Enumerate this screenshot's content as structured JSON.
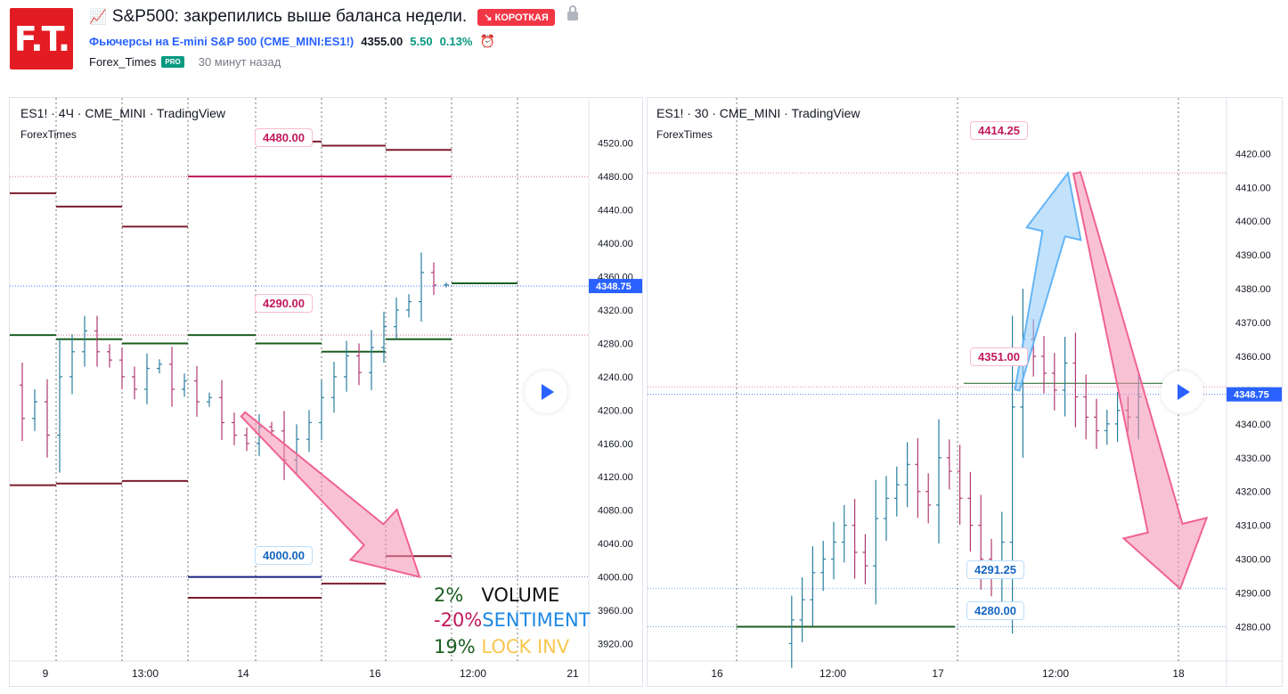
{
  "header": {
    "title": "S&P500: закрепились выше баланса недели.",
    "badge": "↘ КОРОТКАЯ",
    "symbol_name": "Фьючерсы на E-mini S&P 500",
    "symbol_code": "(CME_MINI:ES1!)",
    "price": "4355.00",
    "change": "5.50",
    "change_pct": "0.13%",
    "author": "Forex_Times",
    "pro": "PRO",
    "time_ago": "30 минут назад",
    "logo": "F.T."
  },
  "colors": {
    "accent": "#e31b23",
    "up": "#089981",
    "down": "#880e4f",
    "pink": "#f48fb1",
    "blue": "#90caf9"
  },
  "left_chart": {
    "title": "ES1! · 4Ч · CME_MINI · TradingView",
    "author": "ForexTimes",
    "price_tag": "4348.75",
    "labels": {
      "l4480": "4480.00",
      "l4290": "4290.00",
      "l4000": "4000.00"
    },
    "legend": {
      "v1": "2%",
      "t1": "VOLUME",
      "v2": "-20%",
      "t2": "SENTIMENT",
      "v3": "19%",
      "t3": "LOCK INV"
    }
  },
  "right_chart": {
    "title": "ES1! · 30 · CME_MINI · TradingView",
    "author": "ForexTimes",
    "price_tag": "4348.75",
    "labels": {
      "l4414": "4414.25",
      "l4351": "4351.00",
      "l4291": "4291.25",
      "l4280": "4280.00"
    }
  },
  "chart_data": [
    {
      "type": "line",
      "title": "ES1! · 4Ч · CME_MINI · TradingView",
      "x_ticks": [
        "9",
        "13:00",
        "14",
        "16",
        "12:00",
        "21"
      ],
      "y_ticks": [
        "4520.00",
        "4480.00",
        "4440.00",
        "4400.00",
        "4360.00",
        "4320.00",
        "4280.00",
        "4240.00",
        "4200.00",
        "4160.00",
        "4120.00",
        "4080.00",
        "4040.00",
        "4000.00",
        "3960.00",
        "3920.00"
      ],
      "ylim": [
        3912,
        4540
      ],
      "levels": [
        {
          "value": 4480,
          "label": "4480.00",
          "color": "#c2185b"
        },
        {
          "value": 4290,
          "label": "4290.00",
          "color": "#c2185b"
        },
        {
          "value": 4000,
          "label": "4000.00",
          "color": "#1a237e"
        }
      ],
      "current_price": 4348.75,
      "price_path": [
        4230,
        4190,
        4210,
        4170,
        4240,
        4270,
        4295,
        4270,
        4260,
        4240,
        4225,
        4250,
        4255,
        4225,
        4235,
        4210,
        4215,
        4185,
        4170,
        4160,
        4180,
        4175,
        4140,
        4165,
        4185,
        4215,
        4240,
        4265,
        4245,
        4275,
        4300,
        4320,
        4330,
        4365,
        4350,
        4350
      ],
      "forecast_arrow": {
        "from": 4195,
        "to": 4000
      }
    },
    {
      "type": "line",
      "title": "ES1! · 30 · CME_MINI · TradingView",
      "x_ticks": [
        "16",
        "12:00",
        "17",
        "12:00",
        "18"
      ],
      "y_ticks": [
        "4420.00",
        "4410.00",
        "4400.00",
        "4390.00",
        "4380.00",
        "4370.00",
        "4360.00",
        "4350.00",
        "4340.00",
        "4330.00",
        "4320.00",
        "4310.00",
        "4300.00",
        "4290.00",
        "4280.00"
      ],
      "ylim": [
        4273,
        4428
      ],
      "levels": [
        {
          "value": 4414.25,
          "label": "4414.25",
          "color": "#c2185b"
        },
        {
          "value": 4351,
          "label": "4351.00",
          "color": "#c2185b"
        },
        {
          "value": 4291.25,
          "label": "4291.25",
          "color": "#1565c0"
        },
        {
          "value": 4280,
          "label": "4280.00",
          "color": "#1565c0"
        }
      ],
      "current_price": 4348.75,
      "price_path": [
        4275,
        4282,
        4288,
        4296,
        4300,
        4305,
        4310,
        4302,
        4298,
        4312,
        4318,
        4322,
        4328,
        4320,
        4316,
        4330,
        4326,
        4318,
        4310,
        4300,
        4295,
        4305,
        4345,
        4365,
        4360,
        4355,
        4350,
        4358,
        4348,
        4342,
        4338,
        4340,
        4344,
        4342,
        4348
      ],
      "forecast_arrows": [
        {
          "from": 4350,
          "to": 4414.25
        },
        {
          "from": 4414.25,
          "to": 4291.25
        }
      ]
    }
  ]
}
